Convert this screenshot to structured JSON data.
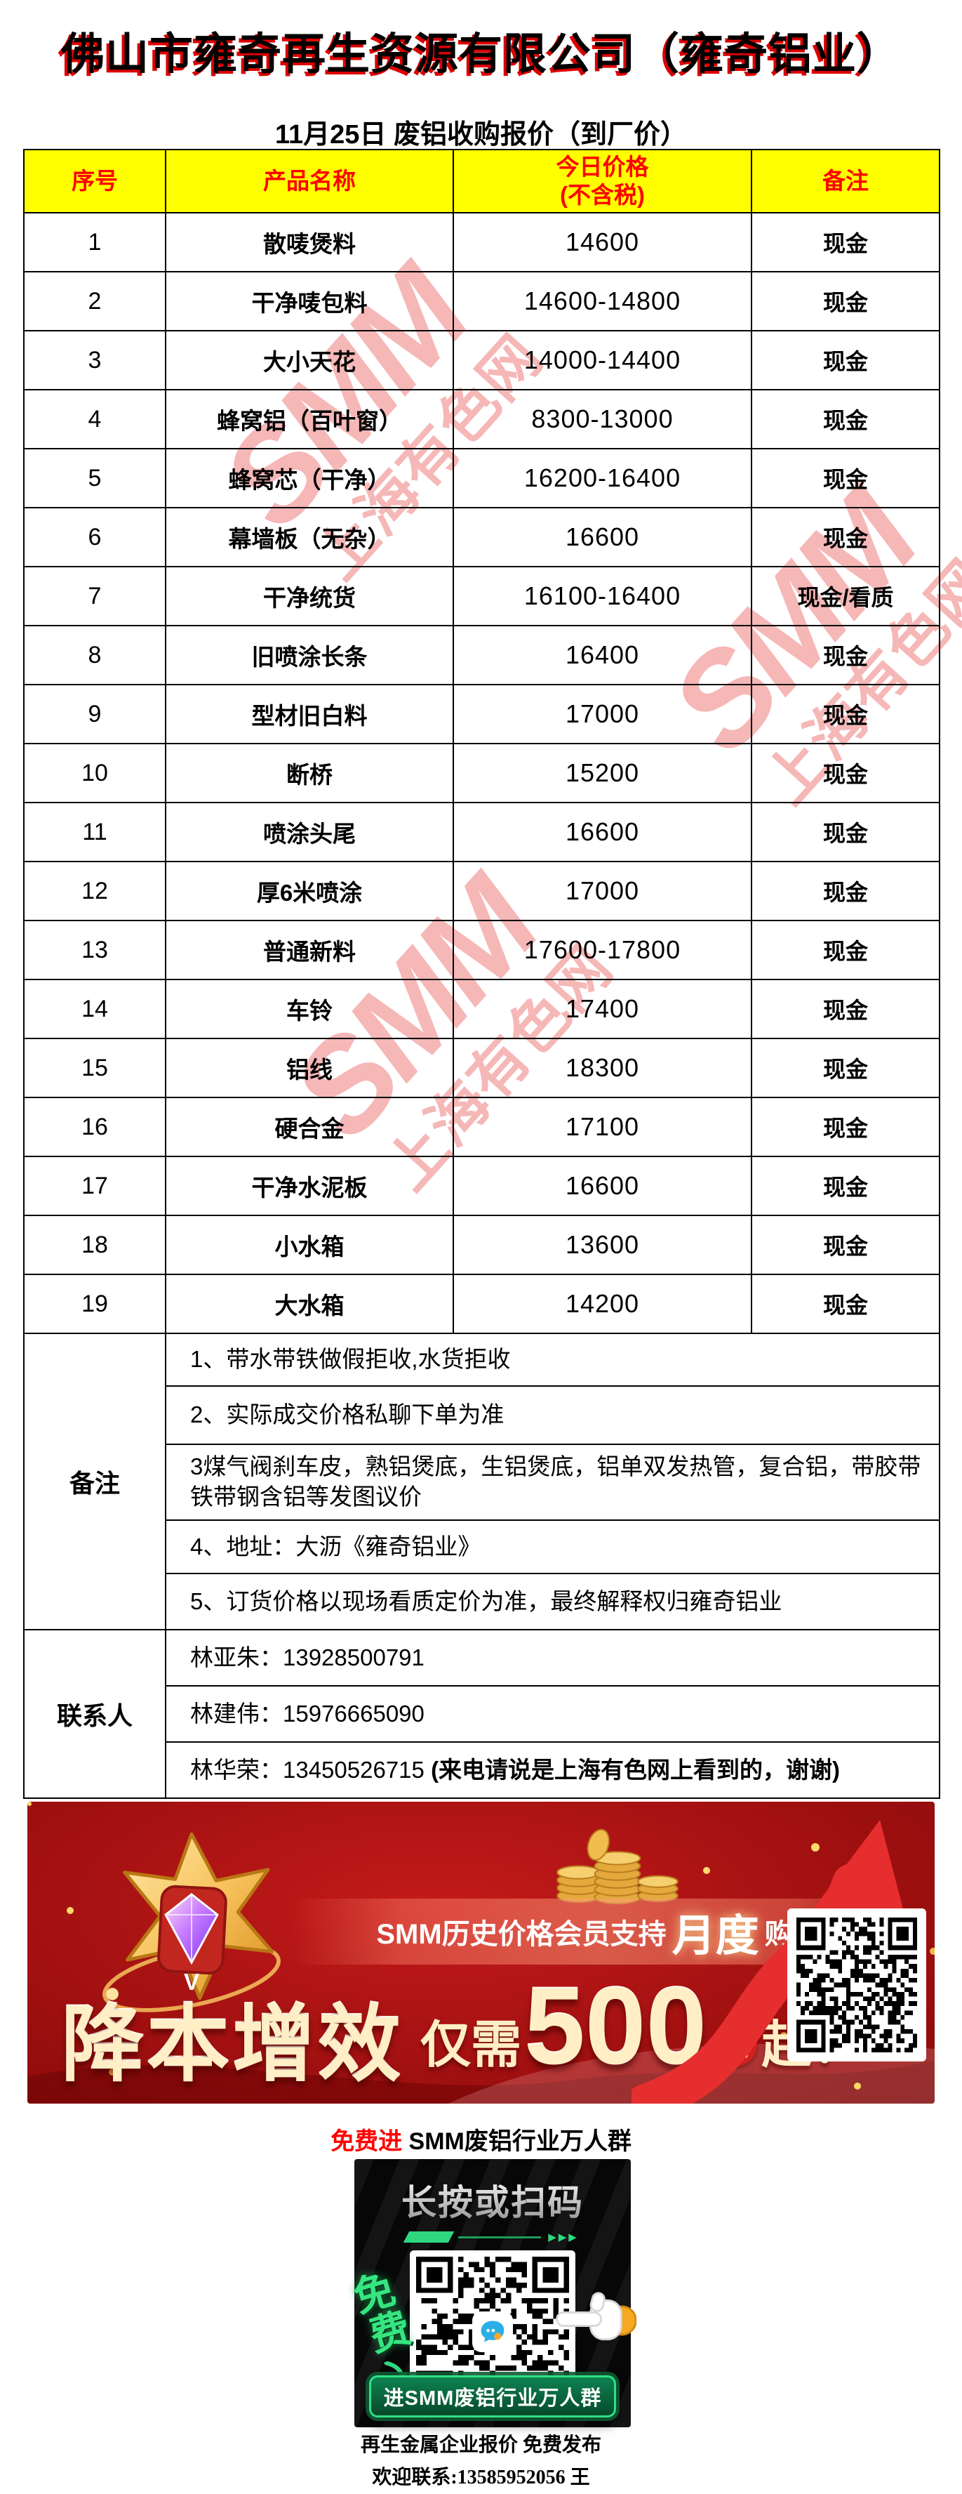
{
  "page": {
    "title": "佛山市雍奇再生资源有限公司（雍奇铝业）",
    "subtitle": "11月25日 废铝收购报价（到厂价）"
  },
  "table": {
    "headers": {
      "no": "序号",
      "product": "产品名称",
      "price_line1": "今日价格",
      "price_line2": "(不含税)",
      "remark": "备注"
    },
    "rows": [
      {
        "no": "1",
        "product": "散唛煲料",
        "price": "14600",
        "remark": "现金"
      },
      {
        "no": "2",
        "product": "干净唛包料",
        "price": "14600-14800",
        "remark": "现金"
      },
      {
        "no": "3",
        "product": "大小天花",
        "price": "14000-14400",
        "remark": "现金"
      },
      {
        "no": "4",
        "product": "蜂窝铝（百叶窗）",
        "price": "8300-13000",
        "remark": "现金"
      },
      {
        "no": "5",
        "product": "蜂窝芯（干净）",
        "price": "16200-16400",
        "remark": "现金"
      },
      {
        "no": "6",
        "product": "幕墙板（无杂）",
        "price": "16600",
        "remark": "现金"
      },
      {
        "no": "7",
        "product": "干净统货",
        "price": "16100-16400",
        "remark": "现金/看质"
      },
      {
        "no": "8",
        "product": "旧喷涂长条",
        "price": "16400",
        "remark": "现金"
      },
      {
        "no": "9",
        "product": "型材旧白料",
        "price": "17000",
        "remark": "现金"
      },
      {
        "no": "10",
        "product": "断桥",
        "price": "15200",
        "remark": "现金"
      },
      {
        "no": "11",
        "product": "喷涂头尾",
        "price": "16600",
        "remark": "现金"
      },
      {
        "no": "12",
        "product": "厚6米喷涂",
        "price": "17000",
        "remark": "现金"
      },
      {
        "no": "13",
        "product": "普通新料",
        "price": "17600-17800",
        "remark": "现金"
      },
      {
        "no": "14",
        "product": "车铃",
        "price": "17400",
        "remark": "现金"
      },
      {
        "no": "15",
        "product": "铝线",
        "price": "18300",
        "remark": "现金"
      },
      {
        "no": "16",
        "product": "硬合金",
        "price": "17100",
        "remark": "现金"
      },
      {
        "no": "17",
        "product": "干净水泥板",
        "price": "16600",
        "remark": "现金"
      },
      {
        "no": "18",
        "product": "小水箱",
        "price": "13600",
        "remark": "现金"
      },
      {
        "no": "19",
        "product": "大水箱",
        "price": "14200",
        "remark": "现金"
      }
    ]
  },
  "notes": {
    "label": "备注",
    "items": [
      "1、带水带铁做假拒收,水货拒收",
      "2、实际成交价格私聊下单为准",
      "3煤气阀刹车皮，熟铝煲底，生铝煲底，铝单双发热管，复合铝，带胶带铁带钢含铝等发图议价",
      "4、地址：大沥《雍奇铝业》",
      "5、订货价格以现场看质定价为准，最终解释权归雍奇铝业"
    ]
  },
  "contacts": {
    "label": "联系人",
    "items": [
      {
        "text": "林亚朱：13928500791",
        "bold": ""
      },
      {
        "text": "林建伟：15976665090",
        "bold": ""
      },
      {
        "text": "林华荣：13450526715 ",
        "bold": "(来电请说是上海有色网上看到的，谢谢)"
      }
    ]
  },
  "watermark": {
    "brand": "SMM",
    "site": "上海有色网"
  },
  "banner": {
    "ribbon_prefix": "SMM历史价格会员支持",
    "ribbon_highlight": "月度",
    "ribbon_suffix": "购买",
    "headline": "降本增效",
    "price_prefix": "仅需",
    "price_number": "500",
    "price_unit": "元",
    "price_suffix": "起！",
    "badge_letter": "V"
  },
  "promo": {
    "highlight": "免费进",
    "rest": " SMM废铝行业万人群"
  },
  "panel": {
    "title": "长按或扫码",
    "arrows": "▶▶▶",
    "free_char1": "免",
    "free_char2": "费",
    "button": "进SMM废铝行业万人群"
  },
  "footer": {
    "line1": "再生金属企业报价 免费发布",
    "line2": "欢迎联系:13585952056 王"
  },
  "colors": {
    "accent_red": "#ff0000",
    "header_yellow": "#ffff00",
    "banner_red": "#8f0d0d",
    "green": "#2fd87f",
    "gold": "#f3c356"
  }
}
